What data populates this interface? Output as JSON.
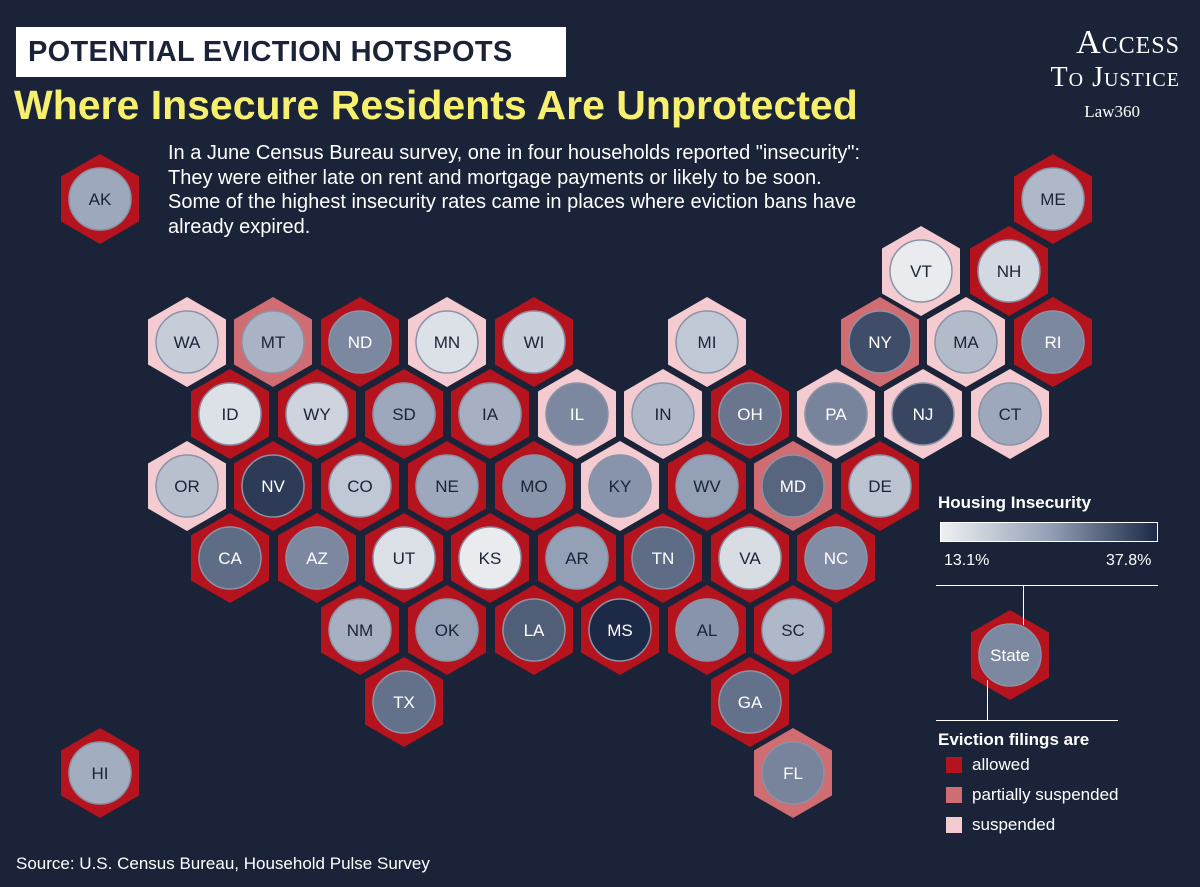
{
  "kicker": "POTENTIAL EVICTION HOTSPOTS",
  "headline": "Where Insecure Residents Are Unprotected",
  "intro": "In a June Census Bureau survey, one in four households reported \"insecurity\": They were either late on rent and mortgage payments or likely to be soon. Some of the highest insecurity rates came in places where eviction bans have already expired.",
  "logo": {
    "line1": "Access",
    "line2": "To Justice",
    "line3": "Law360"
  },
  "source": "Source: U.S. Census Bureau, Household Pulse Survey",
  "colors": {
    "background": "#1b2338",
    "allowed": "#b5131d",
    "partially_suspended": "#cf6d73",
    "suspended": "#f4cbd0",
    "scale_low": "#eef0f3",
    "scale_high": "#1c2a47",
    "title_yellow": "#f7ef6e"
  },
  "legend": {
    "insecurity_title": "Housing Insecurity",
    "scale_min_label": "13.1%",
    "scale_max_label": "37.8%",
    "scale_min": 13.1,
    "scale_max": 37.8,
    "key_label": "State",
    "eviction_title": "Eviction filings are",
    "categories": [
      {
        "key": "allowed",
        "label": "allowed"
      },
      {
        "key": "partially_suspended",
        "label": "partially suspended"
      },
      {
        "key": "suspended",
        "label": "suspended"
      }
    ]
  },
  "states": [
    {
      "abbr": "AK",
      "status": "allowed",
      "insecurity": 0.45
    },
    {
      "abbr": "ME",
      "status": "allowed",
      "insecurity": 0.35
    },
    {
      "abbr": "VT",
      "status": "suspended",
      "insecurity": 0.03
    },
    {
      "abbr": "NH",
      "status": "allowed",
      "insecurity": 0.15
    },
    {
      "abbr": "WA",
      "status": "suspended",
      "insecurity": 0.22
    },
    {
      "abbr": "MT",
      "status": "partially_suspended",
      "insecurity": 0.38
    },
    {
      "abbr": "ND",
      "status": "allowed",
      "insecurity": 0.6
    },
    {
      "abbr": "MN",
      "status": "suspended",
      "insecurity": 0.1
    },
    {
      "abbr": "WI",
      "status": "allowed",
      "insecurity": 0.2
    },
    {
      "abbr": "MI",
      "status": "suspended",
      "insecurity": 0.25
    },
    {
      "abbr": "NY",
      "status": "partially_suspended",
      "insecurity": 0.85
    },
    {
      "abbr": "MA",
      "status": "suspended",
      "insecurity": 0.33
    },
    {
      "abbr": "RI",
      "status": "allowed",
      "insecurity": 0.6
    },
    {
      "abbr": "ID",
      "status": "allowed",
      "insecurity": 0.1
    },
    {
      "abbr": "WY",
      "status": "allowed",
      "insecurity": 0.18
    },
    {
      "abbr": "SD",
      "status": "allowed",
      "insecurity": 0.45
    },
    {
      "abbr": "IA",
      "status": "allowed",
      "insecurity": 0.4
    },
    {
      "abbr": "IL",
      "status": "suspended",
      "insecurity": 0.6
    },
    {
      "abbr": "IN",
      "status": "suspended",
      "insecurity": 0.35
    },
    {
      "abbr": "OH",
      "status": "allowed",
      "insecurity": 0.68
    },
    {
      "abbr": "PA",
      "status": "suspended",
      "insecurity": 0.62
    },
    {
      "abbr": "NJ",
      "status": "suspended",
      "insecurity": 0.88
    },
    {
      "abbr": "CT",
      "status": "suspended",
      "insecurity": 0.45
    },
    {
      "abbr": "OR",
      "status": "suspended",
      "insecurity": 0.3
    },
    {
      "abbr": "NV",
      "status": "allowed",
      "insecurity": 0.93
    },
    {
      "abbr": "CO",
      "status": "allowed",
      "insecurity": 0.25
    },
    {
      "abbr": "NE",
      "status": "allowed",
      "insecurity": 0.45
    },
    {
      "abbr": "MO",
      "status": "allowed",
      "insecurity": 0.55
    },
    {
      "abbr": "KY",
      "status": "suspended",
      "insecurity": 0.55
    },
    {
      "abbr": "WV",
      "status": "allowed",
      "insecurity": 0.5
    },
    {
      "abbr": "MD",
      "status": "partially_suspended",
      "insecurity": 0.75
    },
    {
      "abbr": "DE",
      "status": "allowed",
      "insecurity": 0.28
    },
    {
      "abbr": "CA",
      "status": "allowed",
      "insecurity": 0.72
    },
    {
      "abbr": "AZ",
      "status": "allowed",
      "insecurity": 0.6
    },
    {
      "abbr": "UT",
      "status": "allowed",
      "insecurity": 0.1
    },
    {
      "abbr": "KS",
      "status": "allowed",
      "insecurity": 0.03
    },
    {
      "abbr": "AR",
      "status": "allowed",
      "insecurity": 0.5
    },
    {
      "abbr": "TN",
      "status": "allowed",
      "insecurity": 0.72
    },
    {
      "abbr": "VA",
      "status": "allowed",
      "insecurity": 0.12
    },
    {
      "abbr": "NC",
      "status": "allowed",
      "insecurity": 0.58
    },
    {
      "abbr": "NM",
      "status": "allowed",
      "insecurity": 0.4
    },
    {
      "abbr": "OK",
      "status": "allowed",
      "insecurity": 0.5
    },
    {
      "abbr": "LA",
      "status": "allowed",
      "insecurity": 0.78
    },
    {
      "abbr": "MS",
      "status": "allowed",
      "insecurity": 1.0
    },
    {
      "abbr": "AL",
      "status": "allowed",
      "insecurity": 0.55
    },
    {
      "abbr": "SC",
      "status": "allowed",
      "insecurity": 0.35
    },
    {
      "abbr": "TX",
      "status": "allowed",
      "insecurity": 0.7
    },
    {
      "abbr": "GA",
      "status": "allowed",
      "insecurity": 0.7
    },
    {
      "abbr": "HI",
      "status": "allowed",
      "insecurity": 0.42
    },
    {
      "abbr": "FL",
      "status": "partially_suspended",
      "insecurity": 0.62
    }
  ]
}
